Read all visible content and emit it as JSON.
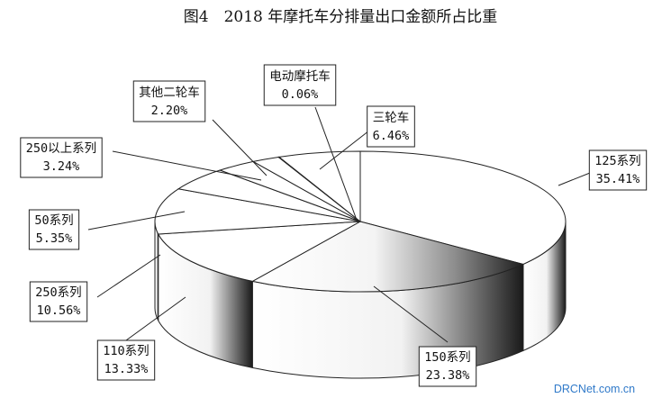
{
  "chart_data": {
    "type": "pie",
    "title": "图4　2018 年摩托车分排量出口金额所占比重",
    "slices": [
      {
        "name": "125系列",
        "percent_label": "35.41%",
        "value": 35.41
      },
      {
        "name": "150系列",
        "percent_label": "23.38%",
        "value": 23.38
      },
      {
        "name": "110系列",
        "percent_label": "13.33%",
        "value": 13.33
      },
      {
        "name": "250系列",
        "percent_label": "10.56%",
        "value": 10.56
      },
      {
        "name": "50系列",
        "percent_label": "5.35%",
        "value": 5.35
      },
      {
        "name": "250以上系列",
        "percent_label": "3.24%",
        "value": 3.24
      },
      {
        "name": "其他二轮车",
        "percent_label": "2.20%",
        "value": 2.2
      },
      {
        "name": "电动摩托车",
        "percent_label": "0.06%",
        "value": 0.06
      },
      {
        "name": "三轮车",
        "percent_label": "6.46%",
        "value": 6.46
      }
    ],
    "legend": "none"
  },
  "watermark": "DRCNet.com.cn"
}
